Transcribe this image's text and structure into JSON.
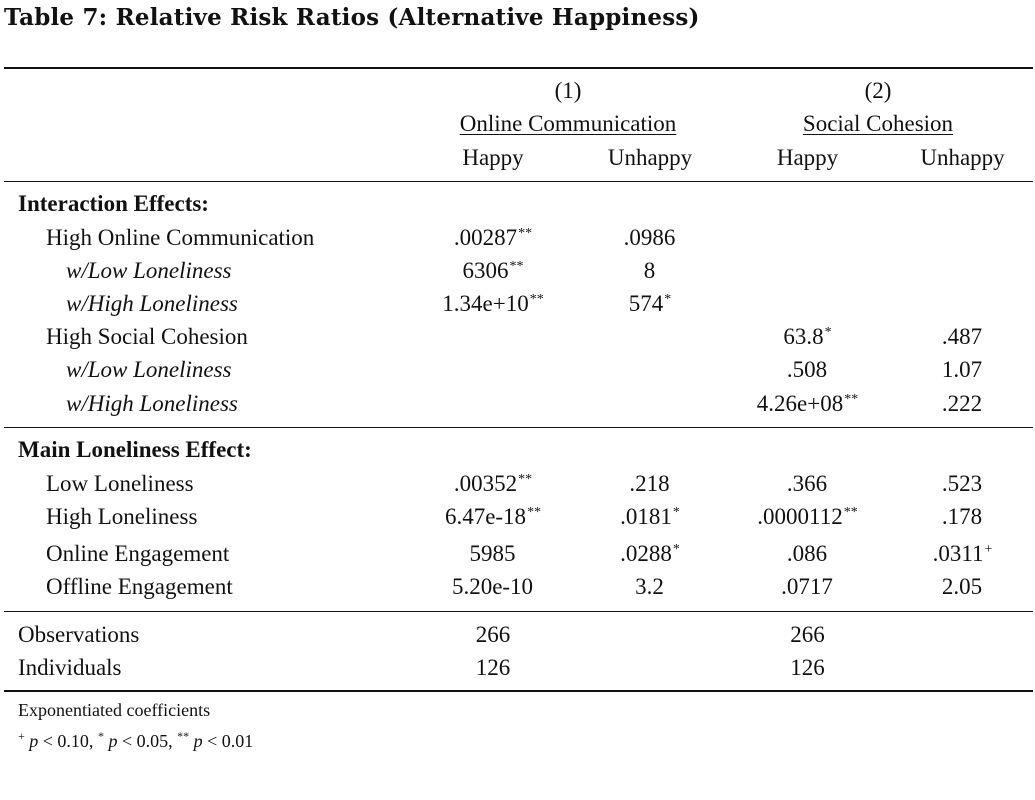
{
  "title": "Table 7: Relative Risk Ratios (Alternative Happiness)",
  "header": {
    "model1_number": "(1)",
    "model1_name": "Online Communication",
    "model2_number": "(2)",
    "model2_name": "Social Cohesion",
    "columns": [
      "Happy",
      "Unhappy",
      "Happy",
      "Unhappy"
    ]
  },
  "sections": [
    {
      "heading": "Interaction Effects:",
      "rows": [
        {
          "label": "High Online Communication",
          "italic": false,
          "values": [
            ".00287",
            ".0986",
            "",
            ""
          ],
          "stars": [
            "**",
            "",
            "",
            ""
          ]
        },
        {
          "label": "w/Low Loneliness",
          "italic": true,
          "values": [
            "6306",
            "8",
            "",
            ""
          ],
          "stars": [
            "**",
            "",
            "",
            ""
          ]
        },
        {
          "label": "w/High Loneliness",
          "italic": true,
          "values": [
            "1.34e+10",
            "574",
            "",
            ""
          ],
          "stars": [
            "**",
            "*",
            "",
            ""
          ]
        },
        {
          "label": "High Social Cohesion",
          "italic": false,
          "values": [
            "",
            "",
            "63.8",
            ".487"
          ],
          "stars": [
            "",
            "",
            "*",
            ""
          ]
        },
        {
          "label": "w/Low Loneliness",
          "italic": true,
          "values": [
            "",
            "",
            ".508",
            "1.07"
          ],
          "stars": [
            "",
            "",
            "",
            ""
          ]
        },
        {
          "label": "w/High Loneliness",
          "italic": true,
          "values": [
            "",
            "",
            "4.26e+08",
            ".222"
          ],
          "stars": [
            "",
            "",
            "**",
            ""
          ]
        }
      ]
    },
    {
      "heading": "Main Loneliness Effect:",
      "rows": [
        {
          "label": "Low Loneliness",
          "italic": false,
          "values": [
            ".00352",
            ".218",
            ".366",
            ".523"
          ],
          "stars": [
            "**",
            "",
            "",
            ""
          ]
        },
        {
          "label": "High Loneliness",
          "italic": false,
          "values": [
            "6.47e-18",
            ".0181",
            ".0000112",
            ".178"
          ],
          "stars": [
            "**",
            "*",
            "**",
            ""
          ]
        },
        {
          "label": "Online Engagement",
          "italic": false,
          "values": [
            "5985",
            ".0288",
            ".086",
            ".0311"
          ],
          "stars": [
            "",
            "*",
            "",
            "+"
          ]
        },
        {
          "label": "Offline Engagement",
          "italic": false,
          "values": [
            "5.20e-10",
            "3.2",
            ".0717",
            "2.05"
          ],
          "stars": [
            "",
            "",
            "",
            ""
          ]
        }
      ]
    }
  ],
  "stats": [
    {
      "label": "Observations",
      "model1": "266",
      "model2": "266"
    },
    {
      "label": "Individuals",
      "model1": "126",
      "model2": "126"
    }
  ],
  "notes": {
    "line1": "Exponentiated coefficients",
    "line2_sym1": "+",
    "line2_text1": " p < 0.10, ",
    "line2_sym2": "*",
    "line2_text2": " p < 0.05, ",
    "line2_sym3": "**",
    "line2_text3": " p < 0.01"
  }
}
